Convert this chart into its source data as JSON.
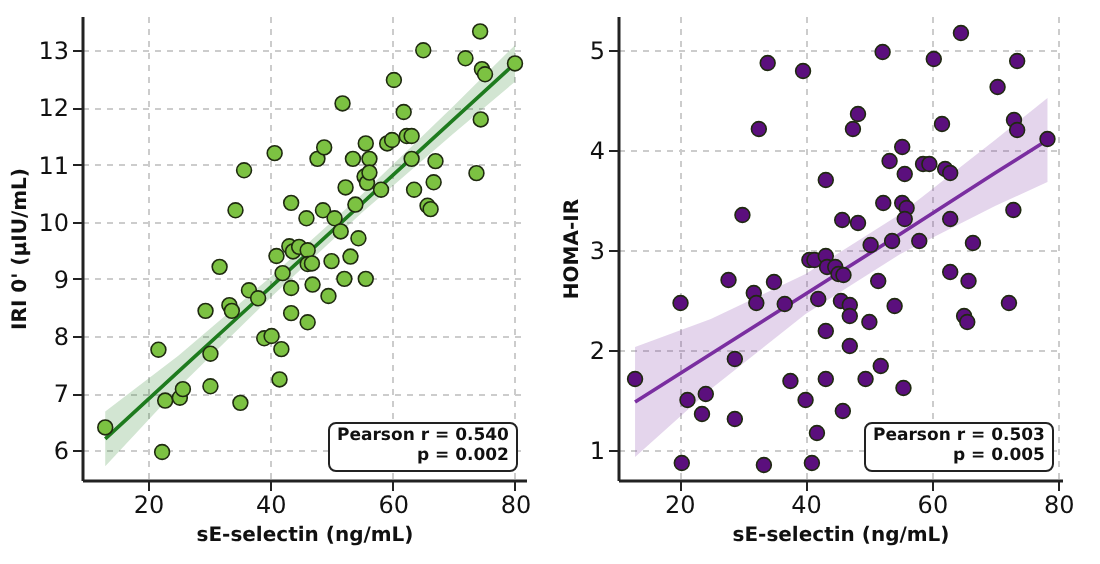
{
  "chart_data": [
    {
      "type": "scatter",
      "xlabel": "sE-selectin (ng/mL)",
      "ylabel": "IRI 0' (µIU/mL)",
      "xlim": [
        9.2,
        81.8
      ],
      "ylim": [
        5.48,
        13.6
      ],
      "xticks": [
        20,
        40,
        60,
        80
      ],
      "yticks": [
        6,
        7,
        8,
        9,
        10,
        11,
        12,
        13
      ],
      "grid": true,
      "annotations": [
        "Pearson r = 0.540",
        "p = 0.002"
      ],
      "series": [
        {
          "type": "scatter",
          "marker": "circle",
          "color": "#7cc242",
          "x": [
            13.0,
            21.7,
            22.3,
            22.8,
            25.2,
            25.7,
            29.4,
            30.2,
            30.2,
            31.7,
            33.3,
            33.7,
            34.3,
            35.1,
            35.7,
            36.5,
            38.0,
            39.0,
            40.7,
            40.2,
            41.0,
            41.8,
            41.5,
            42.0,
            43.1,
            43.4,
            43.4,
            43.4,
            43.7,
            44.7,
            45.9,
            46.1,
            46.1,
            46.1,
            46.8,
            46.9,
            47.7,
            48.6,
            48.8,
            49.5,
            50.0,
            50.5,
            51.5,
            51.8,
            52.1,
            52.3,
            53.1,
            53.5,
            53.9,
            54.4,
            55.6,
            55.6,
            55.4,
            55.8,
            56.2,
            56.2,
            58.1,
            59.1,
            59.9,
            60.2,
            61.8,
            62.3,
            63.1,
            63.1,
            63.5,
            65.0,
            65.7,
            66.2,
            66.7,
            67.0,
            71.9,
            73.7,
            74.3,
            74.4,
            74.6,
            75.1,
            80.0
          ],
          "values": [
            6.4,
            7.76,
            5.97,
            6.87,
            6.92,
            7.07,
            8.44,
            7.69,
            7.12,
            9.21,
            8.54,
            8.44,
            10.2,
            6.83,
            10.9,
            8.8,
            8.66,
            7.96,
            11.2,
            8.0,
            9.4,
            7.77,
            7.24,
            9.1,
            9.57,
            10.33,
            8.84,
            8.4,
            9.48,
            9.56,
            10.06,
            9.5,
            8.24,
            9.26,
            9.27,
            8.9,
            11.1,
            10.2,
            11.3,
            8.7,
            9.31,
            10.06,
            9.83,
            12.07,
            9.0,
            10.6,
            9.39,
            11.1,
            10.3,
            9.71,
            9.0,
            11.37,
            10.79,
            10.68,
            11.1,
            10.86,
            10.56,
            11.37,
            11.43,
            12.48,
            11.92,
            11.5,
            11.5,
            11.1,
            10.56,
            13.0,
            10.28,
            10.22,
            10.69,
            11.06,
            12.86,
            10.85,
            13.33,
            11.79,
            12.67,
            12.58,
            12.77
          ]
        },
        {
          "type": "line",
          "color": "#1e7b1e",
          "x": [
            13,
            25,
            40,
            55,
            70,
            80
          ],
          "values": [
            6.2,
            7.38,
            8.85,
            10.32,
            11.79,
            12.77
          ],
          "lower": [
            5.72,
            7.1,
            8.67,
            10.16,
            11.55,
            12.45
          ],
          "upper": [
            6.68,
            7.66,
            9.03,
            10.48,
            12.03,
            13.09
          ]
        }
      ]
    },
    {
      "type": "scatter",
      "xlabel": "sE-selectin (ng/mL)",
      "ylabel": "HOMA-IR",
      "xlim": [
        10.3,
        80.6
      ],
      "ylim": [
        0.7,
        5.34
      ],
      "xticks": [
        20,
        40,
        60,
        80
      ],
      "yticks": [
        1,
        2,
        3,
        4,
        5
      ],
      "grid": true,
      "annotations": [
        "Pearson r = 0.503",
        "p = 0.005"
      ],
      "series": [
        {
          "type": "scatter",
          "marker": "circle",
          "color": "#5b0f7d",
          "x": [
            13.0,
            20.2,
            20.4,
            21.3,
            23.6,
            24.2,
            27.8,
            28.8,
            28.8,
            30.0,
            31.8,
            32.2,
            32.6,
            33.4,
            34.0,
            35.0,
            36.7,
            37.6,
            39.6,
            40.0,
            40.6,
            41.0,
            41.4,
            41.8,
            42.0,
            43.2,
            43.4,
            44.7,
            45.2,
            46.0,
            43.2,
            43.2,
            43.2,
            45.8,
            47.5,
            48.3,
            48.3,
            45.6,
            47.0,
            47.0,
            47.0,
            45.9,
            49.5,
            50.1,
            50.3,
            51.5,
            51.9,
            52.2,
            52.3,
            53.3,
            53.7,
            54.1,
            55.3,
            55.3,
            55.5,
            55.7,
            56.0,
            55.7,
            58.0,
            58.6,
            59.6,
            60.3,
            61.6,
            62.1,
            62.9,
            62.9,
            62.9,
            64.6,
            65.1,
            65.6,
            65.8,
            66.5,
            70.4,
            72.2,
            72.9,
            73.0,
            73.5,
            73.5,
            78.3
          ],
          "values": [
            1.71,
            2.47,
            0.87,
            1.5,
            1.36,
            1.56,
            2.7,
            1.91,
            1.31,
            3.35,
            2.57,
            2.47,
            4.21,
            0.85,
            4.87,
            2.68,
            2.46,
            1.69,
            4.79,
            1.5,
            2.9,
            0.87,
            2.9,
            1.17,
            2.51,
            2.94,
            2.83,
            2.83,
            2.76,
            2.75,
            2.19,
            1.71,
            3.7,
            3.3,
            4.21,
            4.36,
            3.27,
            2.49,
            2.45,
            2.34,
            2.04,
            1.39,
            1.71,
            2.28,
            3.05,
            2.69,
            1.84,
            4.98,
            3.47,
            3.89,
            3.09,
            2.44,
            4.03,
            3.47,
            1.62,
            3.76,
            3.42,
            3.31,
            3.09,
            3.86,
            3.86,
            4.91,
            4.26,
            3.81,
            3.77,
            3.31,
            2.78,
            5.17,
            2.34,
            2.28,
            2.69,
            3.07,
            4.63,
            2.47,
            3.4,
            4.3,
            4.2,
            4.89,
            4.11
          ]
        },
        {
          "type": "line",
          "color": "#7a2ea0",
          "x": [
            13,
            25,
            40,
            55,
            70,
            78.3
          ],
          "values": [
            1.48,
            1.96,
            2.56,
            3.16,
            3.77,
            4.1
          ],
          "lower": [
            0.93,
            1.61,
            2.36,
            2.96,
            3.44,
            3.68
          ],
          "upper": [
            2.03,
            2.31,
            2.76,
            3.36,
            4.1,
            4.52
          ]
        }
      ]
    }
  ]
}
